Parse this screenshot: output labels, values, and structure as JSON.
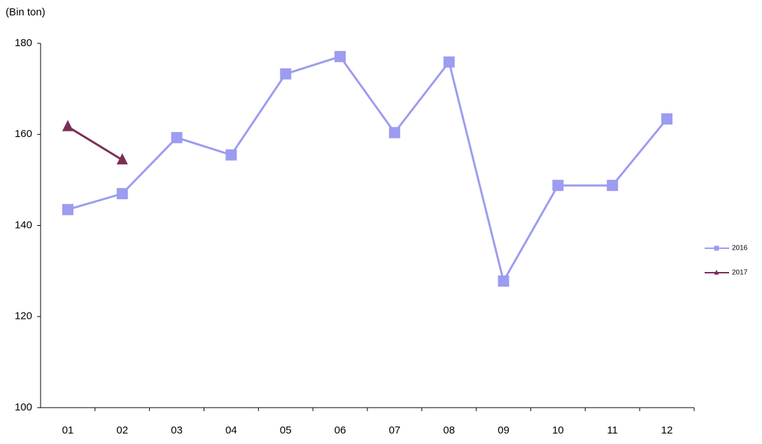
{
  "chart_data": {
    "type": "line",
    "y_label": "(Bin ton)",
    "categories": [
      "01",
      "02",
      "03",
      "04",
      "05",
      "06",
      "07",
      "08",
      "09",
      "10",
      "11",
      "12"
    ],
    "series": [
      {
        "name": "2016",
        "color": "#9c9cf0",
        "marker": "square",
        "values": [
          143.5,
          147,
          159.3,
          155.5,
          173.3,
          177.1,
          160.4,
          175.9,
          127.8,
          148.8,
          148.8,
          163.4
        ]
      },
      {
        "name": "2017",
        "color": "#7b2d55",
        "marker": "triangle",
        "values": [
          161.7,
          154.4,
          null,
          null,
          null,
          null,
          null,
          null,
          null,
          null,
          null,
          null
        ]
      }
    ],
    "ylim": [
      100,
      180
    ],
    "yticks": [
      100,
      120,
      140,
      160,
      180
    ],
    "grid": false,
    "legend": "right"
  }
}
